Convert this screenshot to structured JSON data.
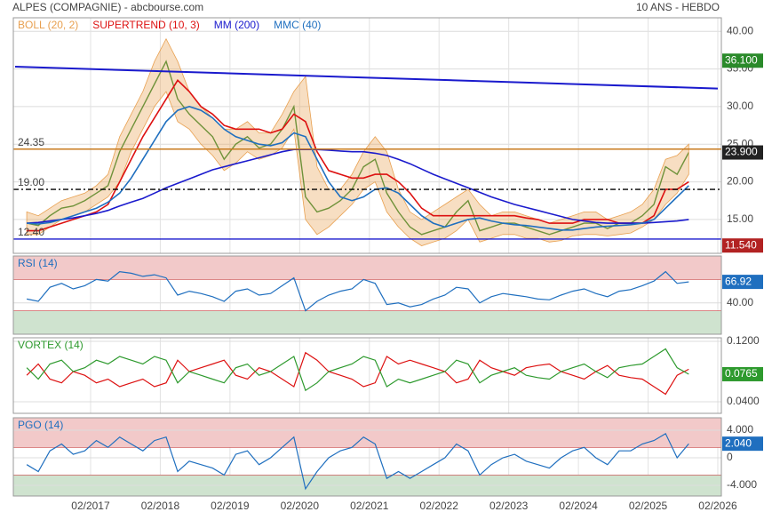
{
  "chart_data": {
    "type": "line",
    "title": "ALPES (COMPAGNIE) - abcbourse.com",
    "subtitle": "10 ANS - HEBDO",
    "x": [
      "03/2016",
      "05/2016",
      "07/2016",
      "09/2016",
      "11/2016",
      "01/2017",
      "03/2017",
      "05/2017",
      "07/2017",
      "09/2017",
      "11/2017",
      "01/2018",
      "03/2018",
      "05/2018",
      "07/2018",
      "09/2018",
      "11/2018",
      "01/2019",
      "03/2019",
      "05/2019",
      "07/2019",
      "09/2019",
      "11/2019",
      "01/2020",
      "03/2020",
      "05/2020",
      "07/2020",
      "09/2020",
      "11/2020",
      "01/2021",
      "03/2021",
      "05/2021",
      "07/2021",
      "09/2021",
      "11/2021",
      "01/2022",
      "03/2022",
      "05/2022",
      "07/2022",
      "09/2022",
      "11/2022",
      "01/2023",
      "03/2023",
      "05/2023",
      "07/2023",
      "09/2023",
      "11/2023",
      "01/2024",
      "03/2024",
      "05/2024",
      "07/2024",
      "09/2024",
      "11/2024",
      "01/2025",
      "03/2025",
      "05/2025",
      "07/2025",
      "09/2025"
    ],
    "xlim": [
      "01/2016",
      "02/2026"
    ],
    "xticks": [
      "02/2017",
      "02/2018",
      "02/2019",
      "02/2020",
      "02/2021",
      "02/2022",
      "02/2023",
      "02/2024",
      "02/2025",
      "02/2026"
    ],
    "ylim": [
      10.5,
      41.8
    ],
    "yticks": [
      {
        "value": 15,
        "label": "15.00"
      },
      {
        "value": 20,
        "label": "20.00"
      },
      {
        "value": 25,
        "label": "25.00"
      },
      {
        "value": 30,
        "label": "30.00"
      },
      {
        "value": 35,
        "label": "35.00"
      },
      {
        "value": 40,
        "label": "40.00"
      }
    ],
    "series": [
      {
        "color": "#2e8b2e",
        "values": [
          14.5,
          14.2,
          15.5,
          16.5,
          16.8,
          17.5,
          18.5,
          19.5,
          24,
          27,
          30,
          33,
          36,
          31,
          29,
          27.5,
          26,
          23,
          25,
          26,
          24.5,
          25,
          27,
          30,
          18,
          16,
          16.5,
          17.5,
          19,
          22,
          23,
          18.5,
          16,
          14,
          13,
          13.5,
          14,
          16,
          17.5,
          13.5,
          14,
          14.5,
          14.5,
          14,
          13.5,
          13,
          13.5,
          14,
          14.5,
          14.5,
          13.8,
          14.5,
          14.5,
          15.5,
          17,
          22,
          21,
          23.9
        ]
      },
      {
        "name": "BOLL (20, 2)",
        "color": "#e8a050",
        "upper": [
          16,
          15.5,
          16.5,
          17.5,
          18,
          18.5,
          19.5,
          21,
          26,
          29,
          32,
          36,
          39,
          36,
          32,
          30,
          28.5,
          27,
          27,
          28,
          26.5,
          26.5,
          29,
          32,
          34,
          22,
          19,
          19,
          21,
          24,
          26,
          24,
          19,
          16,
          15,
          16,
          17,
          18,
          19,
          17,
          15.5,
          16,
          16,
          15.5,
          15,
          14.5,
          15,
          15.5,
          16,
          16,
          15,
          15.5,
          16,
          17,
          19,
          23,
          23.5,
          25
        ],
        "lower": [
          13,
          13,
          14,
          15,
          15.5,
          16,
          17,
          18,
          20,
          24,
          27,
          30,
          32,
          28,
          27,
          25,
          23.5,
          21.5,
          22.5,
          24,
          23,
          23.5,
          24.5,
          27,
          15,
          13,
          14,
          15.5,
          17,
          19,
          20,
          16,
          14,
          12.5,
          11.5,
          12,
          12.5,
          13.5,
          15,
          12,
          12.5,
          13,
          13,
          12.5,
          12.5,
          12,
          12.2,
          12.8,
          13,
          13,
          12.8,
          13,
          13.2,
          14,
          15,
          17,
          18.5,
          21
        ]
      },
      {
        "name": "SUPERTREND (10, 3)",
        "color": "#dd1111",
        "values": [
          13.5,
          13.5,
          14,
          14.5,
          15,
          15.5,
          16,
          17,
          20,
          23,
          26,
          28.5,
          31,
          33.5,
          32,
          30,
          29,
          27.5,
          27,
          27,
          27,
          26.5,
          27,
          29,
          28,
          24,
          21.5,
          21,
          20.5,
          20.5,
          21,
          21,
          20,
          18.5,
          16.5,
          15.5,
          15.5,
          15.5,
          15.5,
          15.5,
          15.5,
          15.5,
          15.5,
          15.2,
          15,
          14.5,
          14.5,
          14.5,
          15,
          15,
          15,
          14.5,
          14.5,
          14.5,
          15.5,
          19,
          19,
          20
        ]
      },
      {
        "name": "MM (200)",
        "color": "#1a1acd",
        "values": [
          14.5,
          14.6,
          14.8,
          15,
          15.2,
          15.5,
          15.8,
          16.2,
          16.8,
          17.3,
          17.8,
          18.5,
          19.2,
          19.8,
          20.4,
          21,
          21.6,
          22,
          22.4,
          22.8,
          23.2,
          23.6,
          24,
          24.3,
          24.3,
          24.3,
          24.2,
          24.1,
          24,
          24,
          23.8,
          23.5,
          23,
          22.4,
          21.7,
          21,
          20.4,
          19.8,
          19.2,
          18.6,
          18,
          17.5,
          17,
          16.6,
          16.2,
          15.8,
          15.4,
          15,
          14.8,
          14.6,
          14.5,
          14.5,
          14.5,
          14.5,
          14.6,
          14.7,
          14.8,
          15
        ]
      },
      {
        "name": "MMC (40)",
        "color": "#1f6fbf",
        "values": [
          14.5,
          14.4,
          14.6,
          15,
          15.5,
          16,
          16.5,
          17.3,
          18.5,
          20.5,
          23,
          25.5,
          28,
          29.5,
          30,
          29.5,
          28.5,
          27,
          26,
          25.5,
          25,
          24.8,
          25.2,
          26.5,
          26,
          23,
          20,
          18,
          17.5,
          18,
          19,
          19.2,
          18.5,
          17,
          15.5,
          14.5,
          14,
          14.5,
          15,
          15.2,
          14.8,
          14.5,
          14.3,
          14.2,
          14,
          13.8,
          13.6,
          13.6,
          13.8,
          14,
          14.1,
          14.2,
          14.3,
          14.5,
          15,
          16.5,
          18,
          19.5
        ]
      }
    ],
    "levels": [
      {
        "value": 24.35,
        "label": "24.35",
        "color": "#c87a1e"
      },
      {
        "value": 19,
        "label": "19.00",
        "color": "#000000",
        "dash": true
      },
      {
        "value": 12.4,
        "label": "12.40",
        "color": "#1a1acd"
      }
    ],
    "trendline": {
      "values": [
        35.3,
        32.4
      ],
      "color": "#1a1acd"
    },
    "markers": [
      {
        "value": 36.1,
        "label": "36.100",
        "color": "#2a8a2a"
      },
      {
        "value": 23.9,
        "label": "23.900",
        "color": "#222222"
      },
      {
        "value": 11.54,
        "label": "11.540",
        "color": "#b22222"
      }
    ],
    "indicators": [
      {
        "title": "RSI (14)",
        "ylim": [
          0,
          100
        ],
        "yticks": [
          {
            "value": 40,
            "label": "40.00"
          }
        ],
        "bands": [
          {
            "from": 70,
            "to": 100,
            "color": "#f2c9c9"
          },
          {
            "from": 0,
            "to": 30,
            "color": "#cfe3cf"
          }
        ],
        "series": [
          {
            "color": "#1f6fbf",
            "badge": true,
            "values": [
              45,
              42,
              60,
              65,
              58,
              62,
              70,
              68,
              80,
              78,
              74,
              76,
              72,
              50,
              55,
              52,
              48,
              42,
              55,
              58,
              50,
              52,
              62,
              72,
              30,
              42,
              50,
              55,
              58,
              70,
              65,
              38,
              40,
              35,
              38,
              45,
              50,
              60,
              58,
              40,
              48,
              52,
              50,
              48,
              45,
              44,
              50,
              55,
              58,
              52,
              48,
              55,
              57,
              62,
              68,
              80,
              65,
              66.92
            ]
          }
        ]
      },
      {
        "title": "VORTEX (14)",
        "ylim": [
          0.0247,
          0.1247
        ],
        "yticks": [
          {
            "value": 0.12,
            "label": "0.1200"
          },
          {
            "value": 0.04,
            "label": "0.0400"
          }
        ],
        "bands": [],
        "series": [
          {
            "color": "#dd1111",
            "values": [
              0.075,
              0.09,
              0.07,
              0.065,
              0.08,
              0.075,
              0.065,
              0.07,
              0.06,
              0.065,
              0.07,
              0.06,
              0.065,
              0.095,
              0.08,
              0.085,
              0.09,
              0.095,
              0.075,
              0.07,
              0.085,
              0.08,
              0.07,
              0.06,
              0.105,
              0.095,
              0.08,
              0.075,
              0.07,
              0.06,
              0.065,
              0.1,
              0.09,
              0.095,
              0.09,
              0.085,
              0.08,
              0.065,
              0.07,
              0.095,
              0.085,
              0.08,
              0.075,
              0.085,
              0.088,
              0.09,
              0.08,
              0.075,
              0.07,
              0.08,
              0.088,
              0.075,
              0.072,
              0.07,
              0.06,
              0.05,
              0.075,
              0.083
            ]
          },
          {
            "color": "#2e9a2e",
            "badge": true,
            "values": [
              0.085,
              0.07,
              0.09,
              0.095,
              0.08,
              0.085,
              0.095,
              0.09,
              0.1,
              0.095,
              0.09,
              0.1,
              0.095,
              0.065,
              0.08,
              0.075,
              0.07,
              0.065,
              0.085,
              0.09,
              0.075,
              0.08,
              0.09,
              0.1,
              0.055,
              0.065,
              0.08,
              0.085,
              0.09,
              0.1,
              0.095,
              0.06,
              0.07,
              0.065,
              0.07,
              0.075,
              0.08,
              0.095,
              0.09,
              0.065,
              0.075,
              0.08,
              0.085,
              0.075,
              0.072,
              0.07,
              0.08,
              0.085,
              0.09,
              0.08,
              0.072,
              0.085,
              0.088,
              0.09,
              0.1,
              0.11,
              0.085,
              0.0765
            ]
          }
        ]
      },
      {
        "title": "PGO (14)",
        "ylim": [
          -5.55,
          5.8
        ],
        "yticks": [
          {
            "value": 4,
            "label": "4.000"
          },
          0,
          {
            "value": -4,
            "label": "-4.000"
          }
        ],
        "bands": [
          {
            "from": 1.5,
            "to": 5.8,
            "color": "#f2c9c9"
          },
          {
            "from": -5.55,
            "to": -2.5,
            "color": "#cfe3cf"
          }
        ],
        "series": [
          {
            "color": "#1f6fbf",
            "badge": true,
            "values": [
              -1,
              -2,
              1,
              2,
              0.5,
              1,
              2.5,
              1.5,
              3,
              2,
              1,
              2.5,
              3,
              -2,
              -0.5,
              -1,
              -1.5,
              -2.5,
              0.5,
              1,
              -1,
              0,
              1.5,
              3,
              -4.5,
              -2,
              0,
              1,
              1.5,
              3,
              2,
              -3,
              -2,
              -3,
              -2,
              -1,
              0,
              2,
              1,
              -2.5,
              -1,
              0,
              0.5,
              -0.5,
              -1,
              -1.5,
              0,
              1,
              1.5,
              0,
              -1,
              1,
              1,
              2,
              2.5,
              3.5,
              0,
              2.04
            ],
            "value_labels": [
              null,
              null,
              null,
              null,
              null,
              null,
              null,
              null,
              null,
              null,
              null,
              null,
              null,
              null,
              null,
              null,
              null,
              null,
              null,
              null,
              null,
              null,
              null,
              null,
              null,
              null,
              null,
              null,
              null,
              null,
              null,
              null,
              null,
              null,
              null,
              null,
              null,
              null,
              null,
              null,
              null,
              null,
              null,
              null,
              null,
              null,
              null,
              null,
              null,
              null,
              null,
              null,
              null,
              null,
              null,
              null,
              null,
              "2.040"
            ]
          }
        ]
      }
    ]
  }
}
